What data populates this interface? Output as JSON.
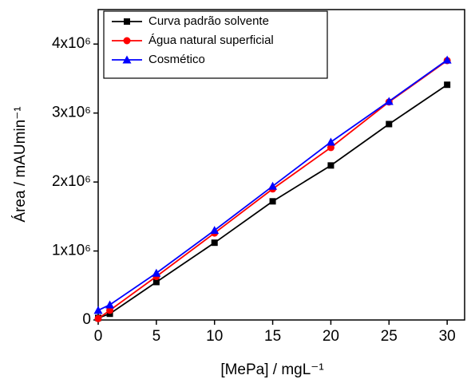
{
  "chart_data": {
    "type": "line",
    "xlabel": "[MePa] / mgL⁻¹",
    "ylabel": "Área / mAUmin⁻¹",
    "x": [
      0,
      1,
      5,
      10,
      15,
      20,
      25,
      30
    ],
    "series": [
      {
        "name": "Curva padrão solvente",
        "color": "#000000",
        "marker": "square",
        "values": [
          30000,
          90000,
          550000,
          1120000,
          1720000,
          2240000,
          2840000,
          3410000
        ]
      },
      {
        "name": "Água natural superficial",
        "color": "#ff0000",
        "marker": "circle",
        "values": [
          20000,
          140000,
          630000,
          1260000,
          1900000,
          2500000,
          3160000,
          3760000
        ]
      },
      {
        "name": "Cosmético",
        "color": "#0000ff",
        "marker": "triangle",
        "values": [
          140000,
          220000,
          680000,
          1300000,
          1940000,
          2580000,
          3170000,
          3770000
        ]
      }
    ],
    "xlim": [
      0,
      31.5
    ],
    "xticks": [
      0,
      5,
      10,
      15,
      20,
      25,
      30
    ],
    "ylim": [
      0,
      4500000
    ],
    "yticks": [
      0,
      {
        "value": 1000000,
        "label": "1x10⁶"
      },
      {
        "value": 2000000,
        "label": "2x10⁶"
      },
      {
        "value": 3000000,
        "label": "3x10⁶"
      },
      {
        "value": 4000000,
        "label": "4x10⁶"
      }
    ],
    "legend": "upper-left"
  }
}
